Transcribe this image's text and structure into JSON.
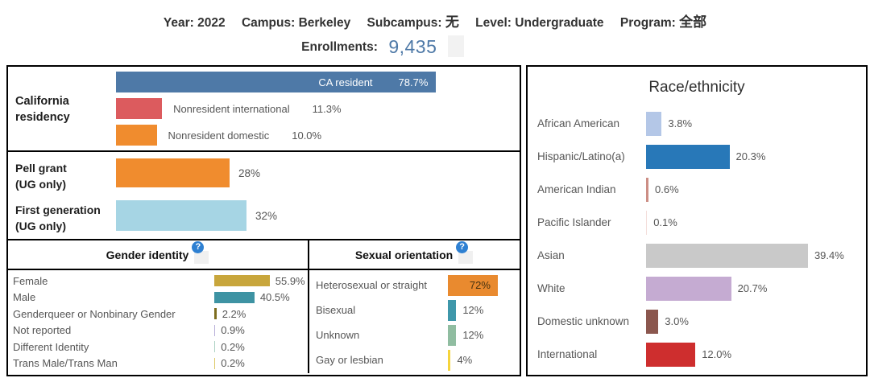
{
  "header": {
    "filters": [
      {
        "label": "Year:",
        "value": "2022"
      },
      {
        "label": "Campus:",
        "value": "Berkeley"
      },
      {
        "label": "Subcampus:",
        "value": "无",
        "cjk": true
      },
      {
        "label": "Level:",
        "value": "Undergraduate"
      },
      {
        "label": "Program:",
        "value": "全部",
        "cjk": true
      }
    ],
    "enrollments_label": "Enrollments:",
    "enrollments_value": "9,435",
    "accent_color": "#4e79a7"
  },
  "icons": {
    "help": "?"
  },
  "chart_data": [
    {
      "type": "bar",
      "title": "California residency",
      "title_lines": [
        "California",
        "residency"
      ],
      "orientation": "horizontal",
      "xlim": [
        0,
        100
      ],
      "unit": "%",
      "categories": [
        "CA resident",
        "Nonresident international",
        "Nonresident domestic"
      ],
      "values": [
        78.7,
        11.3,
        10.0
      ],
      "labels": [
        "78.7%",
        "11.3%",
        "10.0%"
      ],
      "colors": [
        "#4e79a7",
        "#dc5b5e",
        "#f08c2e"
      ]
    },
    {
      "type": "bar",
      "title": "Pell grant / First generation (UG only)",
      "orientation": "horizontal",
      "xlim": [
        0,
        100
      ],
      "unit": "%",
      "categories": [
        "Pell grant (UG only)",
        "First generation (UG only)"
      ],
      "category_lines": [
        [
          "Pell grant",
          "(UG only)"
        ],
        [
          "First generation",
          "(UG only)"
        ]
      ],
      "values": [
        28,
        32
      ],
      "labels": [
        "28%",
        "32%"
      ],
      "colors": [
        "#f08c2e",
        "#a6d5e4"
      ]
    },
    {
      "type": "bar",
      "title": "Gender identity",
      "orientation": "horizontal",
      "xlim": [
        0,
        100
      ],
      "unit": "%",
      "categories": [
        "Female",
        "Male",
        "Genderqueer or Nonbinary Gender",
        "Not reported",
        "Different Identity",
        "Trans Male/Trans Man"
      ],
      "values": [
        55.9,
        40.5,
        2.2,
        0.9,
        0.2,
        0.2
      ],
      "labels": [
        "55.9%",
        "40.5%",
        "2.2%",
        "0.9%",
        "0.2%",
        "0.2%"
      ],
      "colors": [
        "#c8a63c",
        "#3e93a3",
        "#7d6d1f",
        "#b7aed8",
        "#abd1c2",
        "#dcc766"
      ]
    },
    {
      "type": "bar",
      "title": "Sexual orientation",
      "orientation": "horizontal",
      "xlim": [
        0,
        100
      ],
      "unit": "%",
      "categories": [
        "Heterosexual or straight",
        "Bisexual",
        "Unknown",
        "Gay or lesbian"
      ],
      "values": [
        72,
        12,
        12,
        4
      ],
      "labels": [
        "72%",
        "12%",
        "12%",
        "4%"
      ],
      "colors": [
        "#e98a2f",
        "#3e97aa",
        "#90bda1",
        "#f5d43c"
      ]
    },
    {
      "type": "bar",
      "title": "Race/ethnicity",
      "orientation": "horizontal",
      "xlim": [
        0,
        45
      ],
      "unit": "%",
      "categories": [
        "African American",
        "Hispanic/Latino(a)",
        "American Indian",
        "Pacific Islander",
        "Asian",
        "White",
        "Domestic unknown",
        "International"
      ],
      "values": [
        3.8,
        20.3,
        0.6,
        0.1,
        39.4,
        20.7,
        3.0,
        12.0
      ],
      "labels": [
        "3.8%",
        "20.3%",
        "0.6%",
        "0.1%",
        "39.4%",
        "20.7%",
        "3.0%",
        "12.0%"
      ],
      "colors": [
        "#b4c7e7",
        "#2878b8",
        "#cc8e85",
        "#f3ddda",
        "#c9c9c9",
        "#c5abd2",
        "#8b574e",
        "#ce2e2e"
      ]
    }
  ]
}
